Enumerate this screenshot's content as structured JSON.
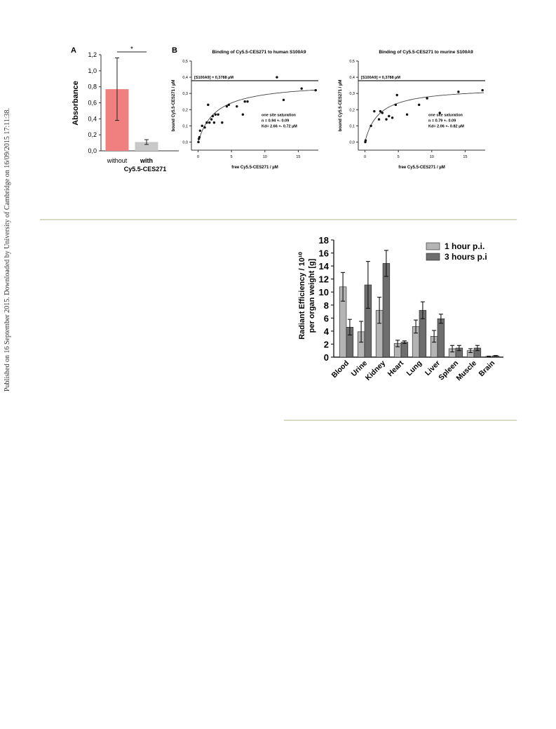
{
  "sidebar": {
    "text": "Published on 16 September 2015. Downloaded by University of Cambridge on 16/09/2015 17:11:38."
  },
  "panels": {
    "a_label": "A",
    "b_label": "B"
  },
  "chart_data": [
    {
      "type": "bar",
      "ylabel": "Absorbance",
      "ylim": [
        0,
        1.2
      ],
      "y_ticks": [
        "0,0",
        "0,2",
        "0,4",
        "0,6",
        "0,8",
        "1,0",
        "1,2"
      ],
      "categories": [
        "without",
        "with"
      ],
      "group_label": "Cy5.5-CES271",
      "values": [
        0.77,
        0.11
      ],
      "errors": [
        0.39,
        0.03
      ],
      "colors": [
        "#f07f7f",
        "#c8c8c8"
      ],
      "significance": "*"
    },
    {
      "type": "scatter",
      "title": "Binding of Cy5.5-CES271 to human S100A9",
      "xlabel": "free Cy5.5-CES271 / µM",
      "ylabel": "bound Cy5.5-CES271 / µM",
      "xlim": [
        -1,
        18
      ],
      "ylim": [
        -0.05,
        0.5
      ],
      "x_ticks": [
        [
          "0",
          0
        ],
        [
          "5",
          5
        ],
        [
          "10",
          10
        ],
        [
          "15",
          15
        ]
      ],
      "y_ticks": [
        [
          "0,0",
          0
        ],
        [
          "0,1",
          0.1
        ],
        [
          "0,2",
          0.2
        ],
        [
          "0,3",
          0.3
        ],
        [
          "0,4",
          0.4
        ],
        [
          "0,5",
          0.5
        ]
      ],
      "ref_line_y": 0.3788,
      "ref_label": "[S100A9] = 0,3788 µM",
      "fit": {
        "bmax": 0.37,
        "kd": 2.66
      },
      "annotation": [
        "one site saturation",
        "n = 0.94 +- 0.09",
        "Kd= 2.66 +- 0.72 µM"
      ],
      "points": [
        [
          0.05,
          0.0
        ],
        [
          0.12,
          0.02
        ],
        [
          0.2,
          0.03
        ],
        [
          0.3,
          0.07
        ],
        [
          0.6,
          0.1
        ],
        [
          1.0,
          0.09
        ],
        [
          1.3,
          0.12
        ],
        [
          1.5,
          0.23
        ],
        [
          1.7,
          0.12
        ],
        [
          2.0,
          0.14
        ],
        [
          2.2,
          0.16
        ],
        [
          2.4,
          0.12
        ],
        [
          2.6,
          0.17
        ],
        [
          3.0,
          0.17
        ],
        [
          3.6,
          0.12
        ],
        [
          4.3,
          0.22
        ],
        [
          4.6,
          0.23
        ],
        [
          5.8,
          0.22
        ],
        [
          6.7,
          0.17
        ],
        [
          7.0,
          0.25
        ],
        [
          7.4,
          0.25
        ],
        [
          11.8,
          0.4
        ],
        [
          12.8,
          0.26
        ],
        [
          15.5,
          0.33
        ],
        [
          17.6,
          0.32
        ]
      ]
    },
    {
      "type": "scatter",
      "title": "Binding of Cy5.5-CES271 to murine S100A9",
      "xlabel": "free Cy5.5-CES271 / µM",
      "ylabel": "bound Cy5.5-CES271 / µM",
      "xlim": [
        -1,
        18
      ],
      "ylim": [
        -0.05,
        0.5
      ],
      "x_ticks": [
        [
          "0",
          0
        ],
        [
          "5",
          5
        ],
        [
          "10",
          10
        ],
        [
          "15",
          15
        ]
      ],
      "y_ticks": [
        [
          "0,0",
          0
        ],
        [
          "0,1",
          0.1
        ],
        [
          "0,2",
          0.2
        ],
        [
          "0,3",
          0.3
        ],
        [
          "0,4",
          0.4
        ],
        [
          "0,5",
          0.5
        ]
      ],
      "ref_line_y": 0.3788,
      "ref_label": "[S100A9] = 0,3788 µM",
      "fit": {
        "bmax": 0.34,
        "kd": 2.06
      },
      "annotation": [
        "one site saturation",
        "n = 0.79 +- 0.09",
        "Kd= 2.06 +- 0.82 µM"
      ],
      "points": [
        [
          0.05,
          0.0
        ],
        [
          0.1,
          0.01
        ],
        [
          0.9,
          0.1
        ],
        [
          1.4,
          0.19
        ],
        [
          2.1,
          0.14
        ],
        [
          2.3,
          0.19
        ],
        [
          2.6,
          0.18
        ],
        [
          3.2,
          0.14
        ],
        [
          3.6,
          0.16
        ],
        [
          4.1,
          0.15
        ],
        [
          4.6,
          0.23
        ],
        [
          4.8,
          0.29
        ],
        [
          6.3,
          0.17
        ],
        [
          8.1,
          0.23
        ],
        [
          9.3,
          0.27
        ],
        [
          11.2,
          0.18
        ],
        [
          14.0,
          0.31
        ],
        [
          17.6,
          0.32
        ]
      ]
    },
    {
      "type": "bar",
      "ylabel": "Radiant Efficiency / 10¹⁰ per organ weight [g]",
      "ylabel_line1": "Radiant Efficiency / 10¹⁰",
      "ylabel_line2": "per organ weight [g]",
      "ylim": [
        0,
        18
      ],
      "y_ticks": [
        "0",
        "2",
        "4",
        "6",
        "8",
        "10",
        "12",
        "14",
        "16",
        "18"
      ],
      "categories": [
        "Blood",
        "Urine",
        "Kidney",
        "Heart",
        "Lung",
        "Liver",
        "Spleen",
        "Muscle",
        "Brain"
      ],
      "series": [
        {
          "name": "1 hour p.i.",
          "color": "#b4b4b4",
          "values": [
            10.8,
            3.9,
            7.2,
            2.1,
            4.7,
            3.2,
            1.3,
            1.0,
            0.1
          ],
          "errors": [
            2.2,
            1.6,
            2.0,
            0.5,
            1.0,
            0.9,
            0.5,
            0.3,
            0.05
          ]
        },
        {
          "name": "3 hours p.i",
          "color": "#6e6e6e",
          "values": [
            4.6,
            11.1,
            14.4,
            2.3,
            7.2,
            5.9,
            1.4,
            1.4,
            0.2
          ],
          "errors": [
            1.2,
            3.6,
            2.0,
            0.2,
            1.3,
            0.7,
            0.4,
            0.4,
            0.05
          ]
        }
      ],
      "legend": "top-right"
    }
  ]
}
